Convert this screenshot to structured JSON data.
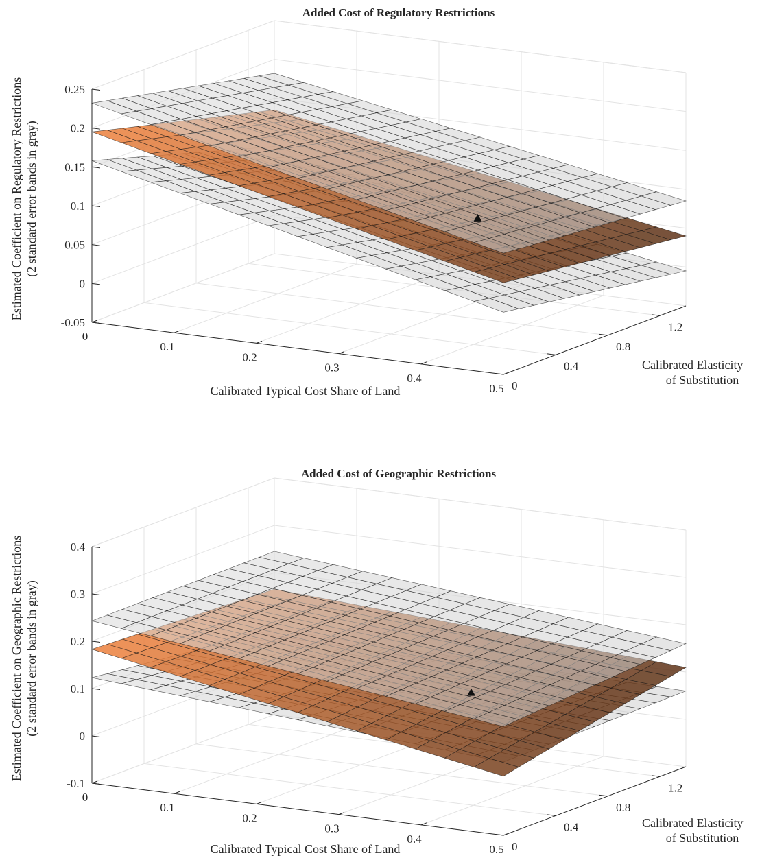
{
  "chart_data": [
    {
      "type": "surface",
      "title": "Added Cost of Regulatory Restrictions",
      "xlabel": "Calibrated Typical Cost Share of Land",
      "ylabel": "Calibrated Elasticity of Substitution",
      "zlabel": "Estimated Coefficient on Regulatory Restrictions",
      "zlabel2": "(2 standard error bands in gray)",
      "x_ticks": [
        "0",
        "0.1",
        "0.2",
        "0.3",
        "0.4",
        "0.5"
      ],
      "y_ticks": [
        "0",
        "0.4",
        "0.8",
        "1.2"
      ],
      "z_ticks": [
        "-0.05",
        "0",
        "0.05",
        "0.1",
        "0.15",
        "0.2",
        "0.25"
      ],
      "xlim": [
        0,
        0.5
      ],
      "ylim": [
        0,
        1.4
      ],
      "zlim": [
        -0.05,
        0.25
      ],
      "grid": true,
      "series": [
        {
          "name": "",
          "color": "#d8d8d8",
          "corners": {
            "x0_y0": 0.158,
            "x0_y1": 0.088,
            "x1_y0": 0.03,
            "x1_y1": -0.005
          }
        },
        {
          "name": "",
          "color": "#e07a3a",
          "corners": {
            "x0_y0": 0.195,
            "x0_y1": 0.135,
            "x1_y0": 0.068,
            "x1_y1": 0.04
          }
        },
        {
          "name": "",
          "color": "#d8d8d8",
          "corners": {
            "x0_y0": 0.232,
            "x0_y1": 0.182,
            "x1_y0": 0.106,
            "x1_y1": 0.085
          }
        }
      ],
      "marker": {
        "x": 0.35,
        "y": 0.75,
        "z": 0.083
      }
    },
    {
      "type": "surface",
      "title": "Added Cost of Geographic Restrictions",
      "xlabel": "Calibrated Typical Cost Share of Land",
      "ylabel": "Calibrated Elasticity of Substitution",
      "zlabel": "Estimated Coefficient on Geographic Restrictions",
      "zlabel2": "(2 standard error bands in gray)",
      "x_ticks": [
        "0",
        "0.1",
        "0.2",
        "0.3",
        "0.4",
        "0.5"
      ],
      "y_ticks": [
        "0",
        "0.4",
        "0.8",
        "1.2"
      ],
      "z_ticks": [
        "-0.1",
        "0",
        "0.1",
        "0.2",
        "0.3",
        "0.4"
      ],
      "xlim": [
        0,
        0.5
      ],
      "ylim": [
        0,
        1.4
      ],
      "zlim": [
        -0.1,
        0.4
      ],
      "grid": true,
      "series": [
        {
          "name": "",
          "color": "#d8d8d8",
          "corners": {
            "x0_y0": 0.123,
            "x0_y1": 0.08,
            "x1_y0": 0.055,
            "x1_y1": 0.06
          }
        },
        {
          "name": "",
          "color": "#e07a3a",
          "corners": {
            "x0_y0": 0.183,
            "x0_y1": 0.165,
            "x1_y0": 0.025,
            "x1_y1": 0.11
          }
        },
        {
          "name": "",
          "color": "#d8d8d8",
          "corners": {
            "x0_y0": 0.243,
            "x0_y1": 0.245,
            "x1_y0": 0.13,
            "x1_y1": 0.16
          }
        }
      ],
      "marker": {
        "x": 0.35,
        "y": 0.7,
        "z": 0.095
      }
    }
  ]
}
